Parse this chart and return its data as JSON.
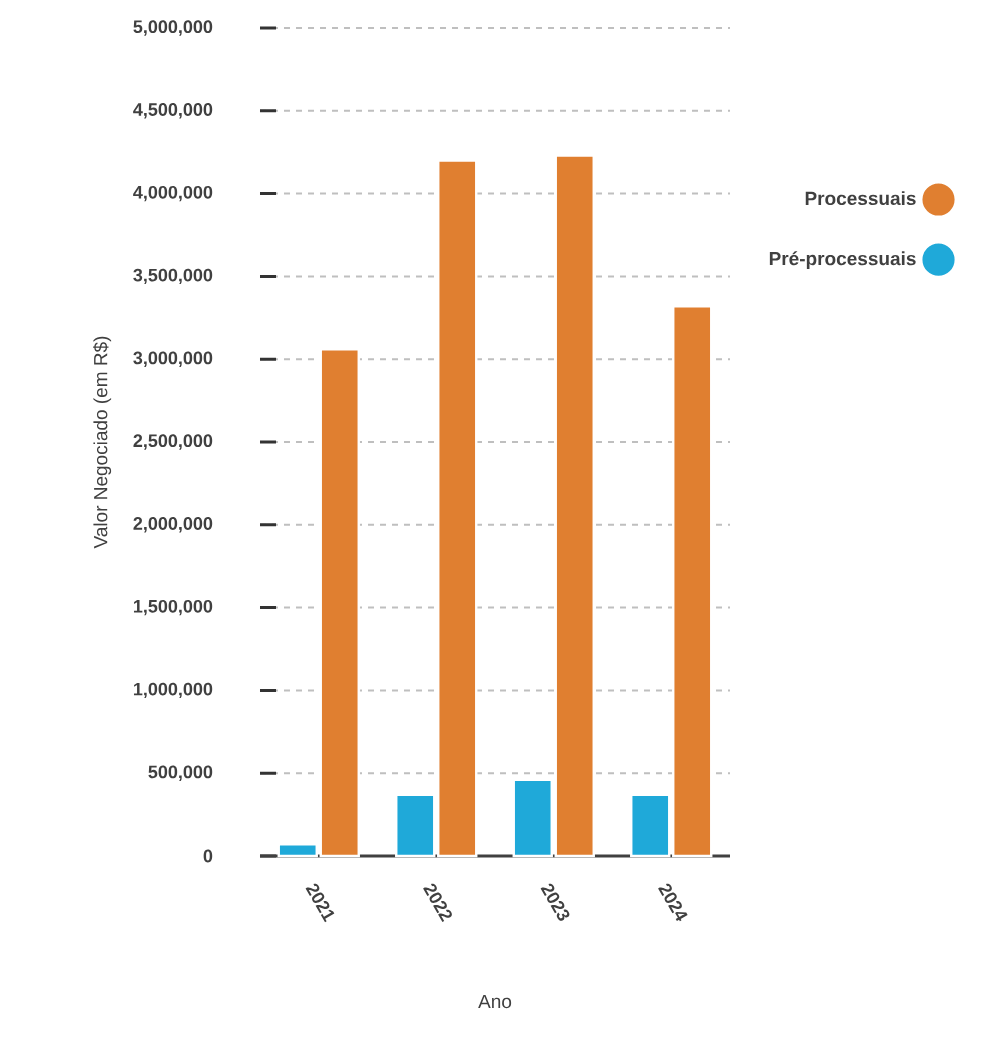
{
  "chart_data": {
    "type": "bar",
    "xlabel": "Ano",
    "ylabel": "Valor Negociado (em R$)",
    "categories": [
      "2021",
      "2022",
      "2023",
      "2024"
    ],
    "series": [
      {
        "name": "Pré-processuais",
        "color": "#1fa9d9",
        "values": [
          70000,
          370000,
          460000,
          370000
        ]
      },
      {
        "name": "Processuais",
        "color": "#e07f30",
        "values": [
          3060000,
          4200000,
          4230000,
          3320000
        ]
      }
    ],
    "ylim": [
      0,
      5000000
    ],
    "yticks": [
      {
        "value": 0,
        "label": "0"
      },
      {
        "value": 500000,
        "label": "500,000"
      },
      {
        "value": 1000000,
        "label": "1,000,000"
      },
      {
        "value": 1500000,
        "label": "1,500,000"
      },
      {
        "value": 2000000,
        "label": "2,000,000"
      },
      {
        "value": 2500000,
        "label": "2,500,000"
      },
      {
        "value": 3000000,
        "label": "3,000,000"
      },
      {
        "value": 3500000,
        "label": "3,500,000"
      },
      {
        "value": 4000000,
        "label": "4,000,000"
      },
      {
        "value": 4500000,
        "label": "4,500,000"
      },
      {
        "value": 5000000,
        "label": "5,000,000"
      }
    ],
    "grid": "y",
    "legend": "right"
  }
}
